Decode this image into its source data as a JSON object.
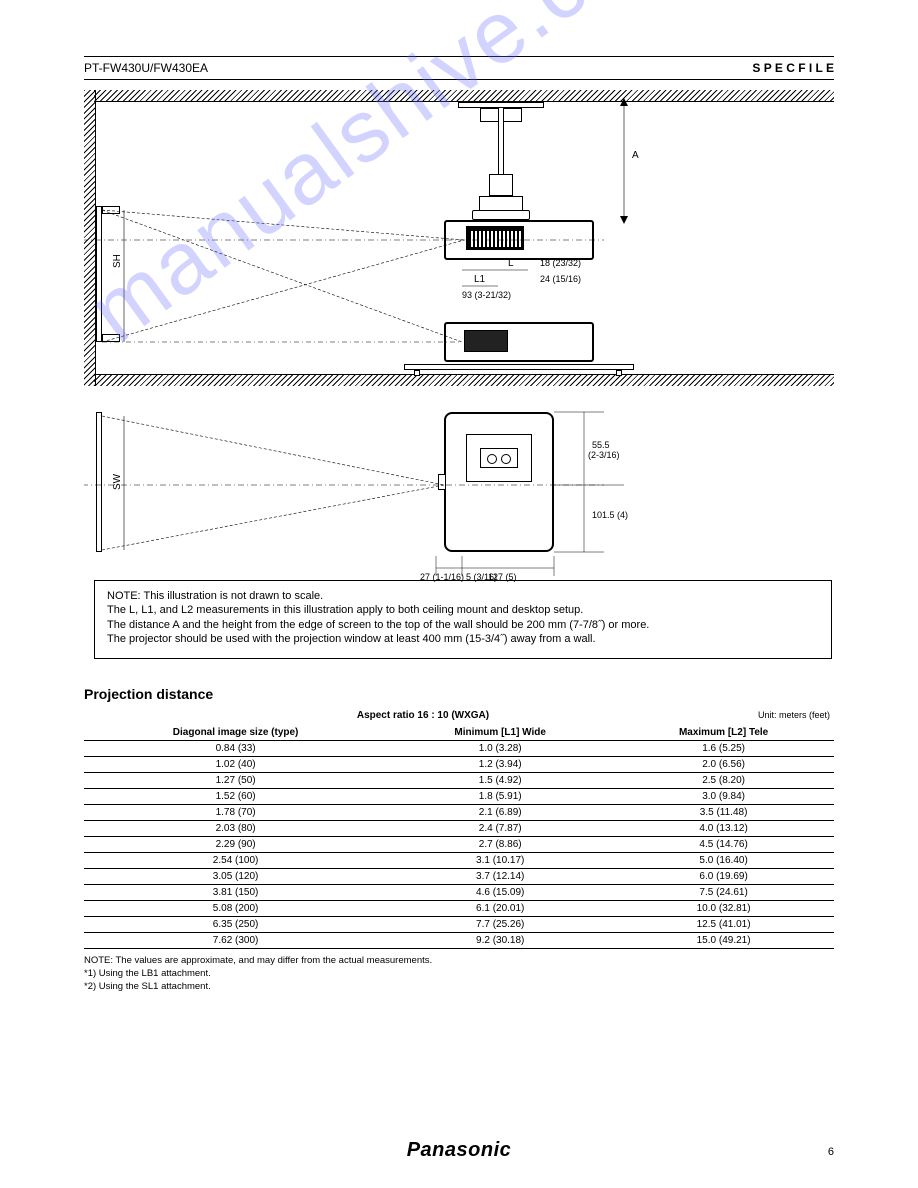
{
  "header": {
    "model": "PT-FW430U/FW430EA",
    "spec_title": "S P E C F I L E"
  },
  "watermark": "manualshive.com",
  "diagram_labels": {
    "A1": "A",
    "L1a": "L",
    "L1b": "L1",
    "L2a": "L",
    "L2b": "L2",
    "dim1": "18 (23/32)",
    "dim2": "93 (3-21/32)",
    "dim3": "24 (15/16)",
    "dim4": "93 (3-21/32)",
    "dim5": "27 (1-1/16)",
    "dim6": "5 (3/16)",
    "dim7": "127 (5)",
    "dim8": "55.5",
    "dim8a": "(2-3/16)",
    "dim9": "101.5 (4)",
    "sh": "SH",
    "sw": "SW"
  },
  "note": {
    "l1": "NOTE: This illustration is not drawn to scale.",
    "l2": "The L, L1, and L2 measurements in this illustration apply to both ceiling mount and desktop setup.",
    "l3": "The distance A and the height from the edge of screen to the top of the wall should be 200 mm (7-7/8˝) or more.",
    "l4": "The projector should be used with the projection window at least 400 mm (15-3/4˝) away from a wall."
  },
  "distance_table": {
    "title": "Projection distance",
    "unit": "Unit: meters (feet)",
    "headers": {
      "ratio": "Aspect ratio 16 : 10 (WXGA)",
      "diag": "Diagonal image size (type)",
      "min": "Minimum [L1] Wide",
      "max": "Maximum [L2] Tele"
    },
    "style": {
      "row_border": "#000000",
      "font_size_pt": 10,
      "header_weight": "bold"
    },
    "rows": [
      [
        "0.84 (33)",
        "1.0 (3.28)",
        "1.6 (5.25)"
      ],
      [
        "1.02 (40)",
        "1.2 (3.94)",
        "2.0 (6.56)"
      ],
      [
        "1.27 (50)",
        "1.5 (4.92)",
        "2.5 (8.20)"
      ],
      [
        "1.52 (60)",
        "1.8 (5.91)",
        "3.0 (9.84)"
      ],
      [
        "1.78 (70)",
        "2.1 (6.89)",
        "3.5 (11.48)"
      ],
      [
        "2.03 (80)",
        "2.4 (7.87)",
        "4.0 (13.12)"
      ],
      [
        "2.29 (90)",
        "2.7 (8.86)",
        "4.5 (14.76)"
      ],
      [
        "2.54 (100)",
        "3.1 (10.17)",
        "5.0 (16.40)"
      ],
      [
        "3.05 (120)",
        "3.7 (12.14)",
        "6.0 (19.69)"
      ],
      [
        "3.81 (150)",
        "4.6 (15.09)",
        "7.5 (24.61)"
      ],
      [
        "5.08 (200)",
        "6.1 (20.01)",
        "10.0 (32.81)"
      ],
      [
        "6.35 (250)",
        "7.7 (25.26)",
        "12.5 (41.01)"
      ],
      [
        "7.62 (300)",
        "9.2 (30.18)",
        "15.0 (49.21)"
      ]
    ],
    "notes": [
      "NOTE: The values are approximate, and may differ from the actual measurements.",
      "*1) Using the LB1 attachment.",
      "*2) Using the SL1 attachment."
    ]
  },
  "footer": {
    "brand": "Panasonic",
    "page": "6"
  }
}
